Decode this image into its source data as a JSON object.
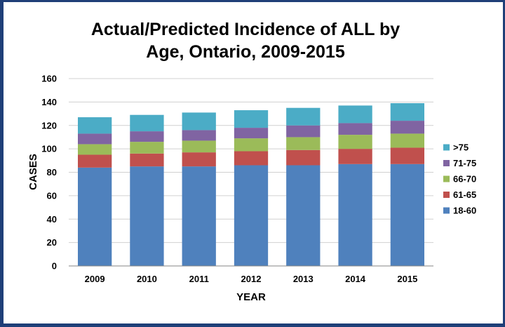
{
  "chart_data": {
    "type": "bar",
    "stacked": true,
    "title": "Actual/Predicted Incidence of ALL by\nAge,  Ontario, 2009-2015",
    "xlabel": "YEAR",
    "ylabel": "CASES",
    "ylim": [
      0,
      160
    ],
    "yticks": [
      "0",
      "20",
      "40",
      "60",
      "80",
      "100",
      "120",
      "140",
      "160"
    ],
    "grid": true,
    "legend": "right",
    "categories": [
      "2009",
      "2010",
      "2011",
      "2012",
      "2013",
      "2014",
      "2015"
    ],
    "series": [
      {
        "name": "18-60",
        "color": "#4f81bd",
        "values": [
          84,
          85,
          85,
          86,
          86,
          87,
          87
        ]
      },
      {
        "name": "61-65",
        "color": "#c0504d",
        "values": [
          11,
          11,
          12,
          12,
          13,
          13,
          14
        ]
      },
      {
        "name": "66-70",
        "color": "#9bbb59",
        "values": [
          9,
          10,
          10,
          11,
          11,
          12,
          12
        ]
      },
      {
        "name": "71-75",
        "color": "#8064a2",
        "values": [
          9,
          9,
          9,
          9,
          10,
          10,
          11
        ]
      },
      {
        "name": ">75",
        "color": "#4bacc6",
        "values": [
          14,
          14,
          15,
          15,
          15,
          15,
          15
        ]
      }
    ]
  }
}
